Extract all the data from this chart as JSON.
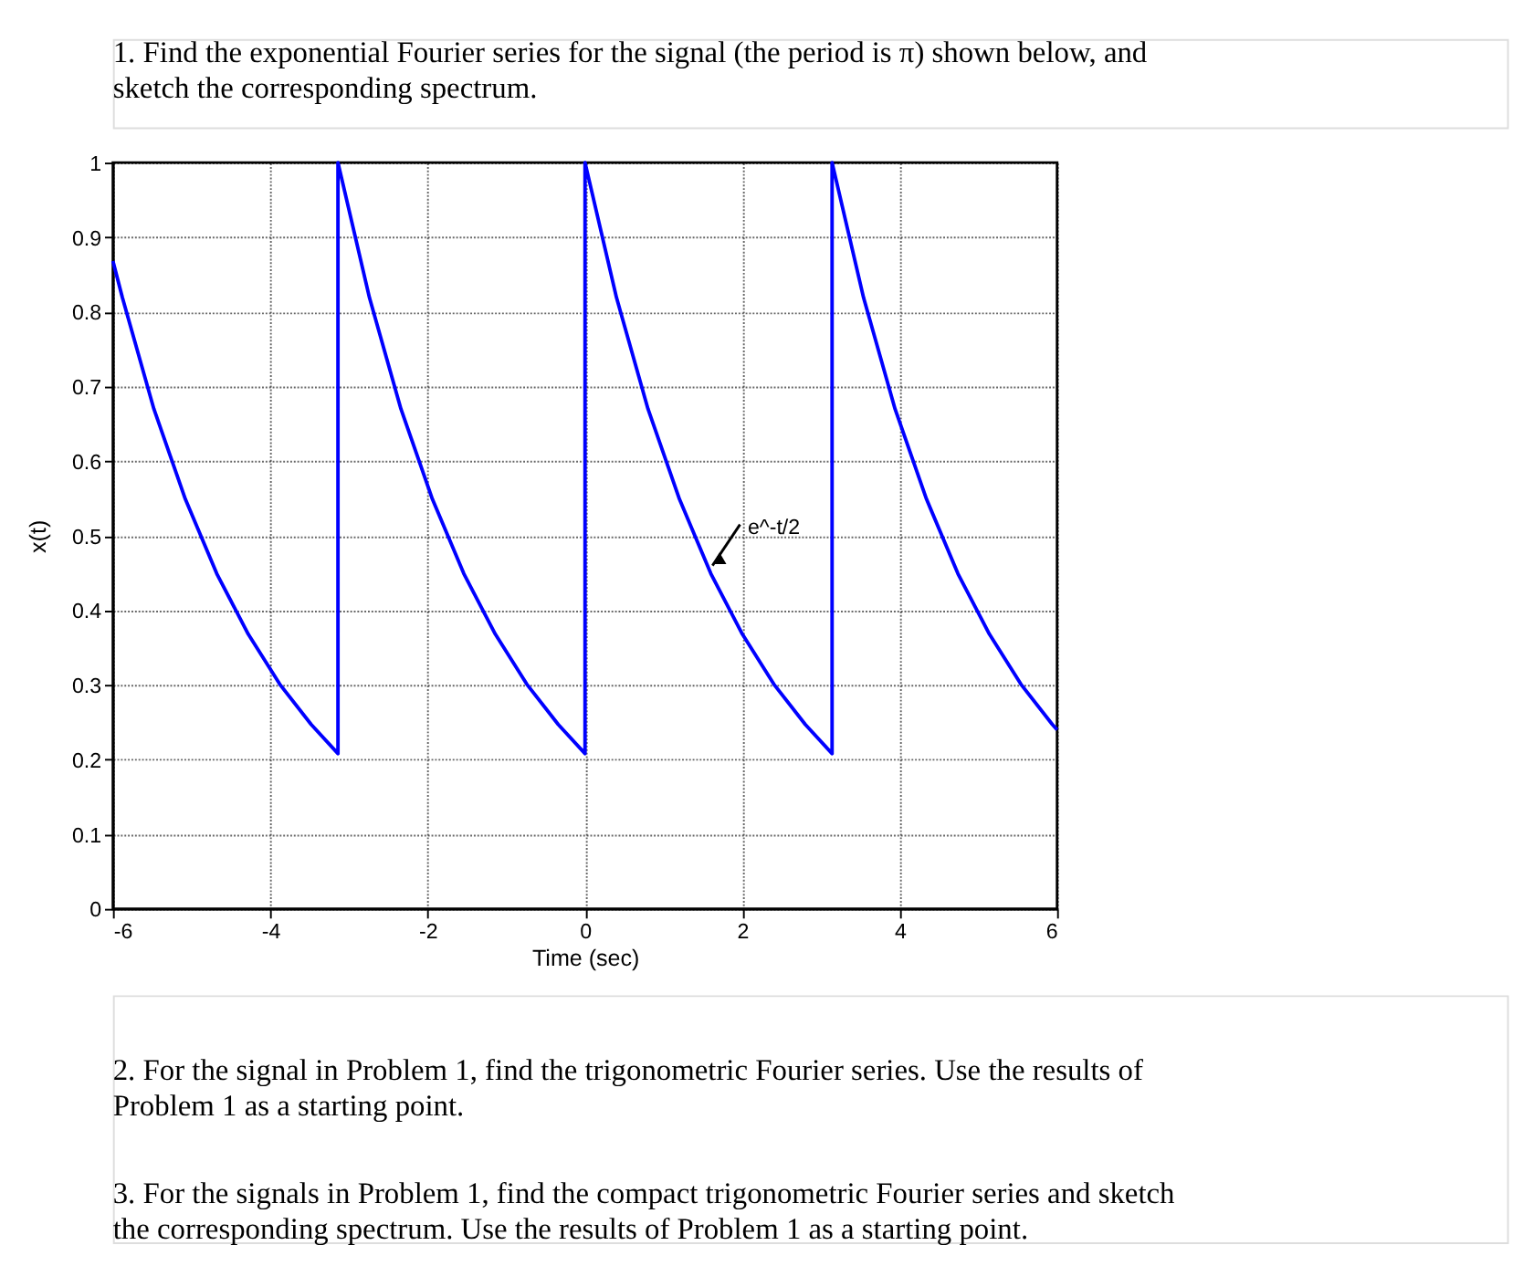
{
  "chart_data": {
    "type": "line",
    "title": "1.    Find the exponential Fourier series for the signal (the period is π) shown below, and sketch the corresponding spectrum.",
    "xlabel": "Time (sec)",
    "ylabel": "x(t)",
    "x": [
      -6,
      -5.88,
      -5.48,
      -5.08,
      -4.68,
      -4.28,
      -3.88,
      -3.48,
      -3.14,
      -3.14,
      -2.74,
      -2.34,
      -1.94,
      -1.54,
      -1.14,
      -0.74,
      -0.34,
      0,
      0,
      0.4,
      0.8,
      1.2,
      1.6,
      2.0,
      2.4,
      2.8,
      3.14,
      3.14,
      3.54,
      3.94,
      4.34,
      4.74,
      5.14,
      5.54,
      5.94,
      6
    ],
    "series": [
      {
        "color": "#0000ff",
        "values": [
          0.868,
          0.819,
          0.67,
          0.549,
          0.449,
          0.368,
          0.301,
          0.247,
          0.208,
          1,
          0.819,
          0.67,
          0.549,
          0.449,
          0.368,
          0.301,
          0.247,
          0.208,
          1,
          0.819,
          0.67,
          0.549,
          0.449,
          0.368,
          0.301,
          0.247,
          0.208,
          1,
          0.819,
          0.67,
          0.549,
          0.449,
          0.368,
          0.301,
          0.247,
          0.24
        ]
      }
    ],
    "xlim": [
      -6,
      6
    ],
    "xticks": [
      -6,
      -4,
      -2,
      0,
      2,
      4,
      6
    ],
    "ylim": [
      0,
      1
    ],
    "yticks": [
      0,
      0.1,
      0.2,
      0.3,
      0.4,
      0.5,
      0.6,
      0.7,
      0.8,
      0.9,
      1
    ],
    "grid": true,
    "line_style": "solid",
    "marker": "none",
    "annotations": [
      {
        "text": "e^-t/2",
        "x": 1.62,
        "y": 0.46
      },
      "2.    For the signal in Problem 1, find the trigonometric Fourier series. Use the results of Problem 1 as a starting point.",
      "3.    For the signals in Problem 1, find the compact trigonometric Fourier series and sketch the corresponding spectrum. Use the results of Problem 1 as a starting point."
    ]
  }
}
